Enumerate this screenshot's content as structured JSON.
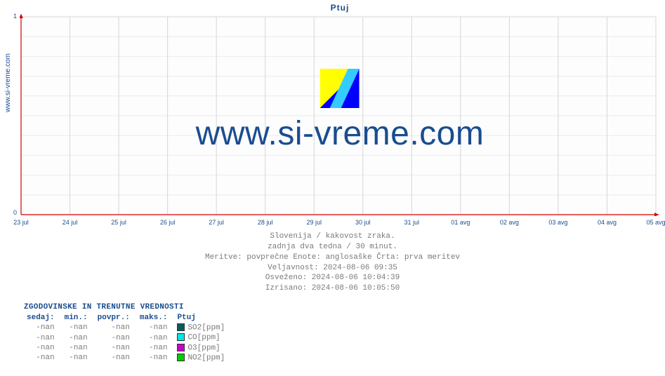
{
  "site_label": "www.si-vreme.com",
  "chart": {
    "title": "Ptuj",
    "type": "line",
    "background_color": "#fdfdfe",
    "grid_color_major": "#d6d6d6",
    "grid_color_minor": "#ececec",
    "axis_color": "#d90000",
    "tick_label_color": "#1a4d8f",
    "tick_font_size": 9,
    "title_color": "#1a4d8f",
    "title_font_size": 12,
    "xlim": [
      0,
      13
    ],
    "ylim": [
      0,
      1
    ],
    "yticks": [
      0,
      1
    ],
    "y_minor_step": 0.1,
    "xticks": [
      "23 jul",
      "24 jul",
      "25 jul",
      "26 jul",
      "27 jul",
      "28 jul",
      "29 jul",
      "30 jul",
      "31 jul",
      "01 avg",
      "02 avg",
      "03 avg",
      "04 avg",
      "05 avg"
    ],
    "series": []
  },
  "watermark": {
    "text": "www.si-vreme.com",
    "logo_colors": {
      "yellow": "#ffff00",
      "cyan": "#33ccff",
      "blue": "#0000ff"
    }
  },
  "meta": {
    "line1": "Slovenija / kakovost zraka.",
    "line2": "zadnja dva tedna / 30 minut.",
    "line3": "Meritve: povprečne  Enote: anglosaške  Črta: prva meritev",
    "line4": "Veljavnost: 2024-08-06 09:35",
    "line5": "Osveženo: 2024-08-06 10:04:39",
    "line6": "Izrisano: 2024-08-06 10:05:50"
  },
  "table": {
    "title": "ZGODOVINSKE IN TRENUTNE VREDNOSTI",
    "headers": {
      "now": "sedaj:",
      "min": "min.:",
      "avg": "povpr.:",
      "max": "maks.:",
      "station": "Ptuj"
    },
    "rows": [
      {
        "now": "-nan",
        "min": "-nan",
        "avg": "-nan",
        "max": "-nan",
        "color": "#0b5a5a",
        "label": "SO2[ppm]"
      },
      {
        "now": "-nan",
        "min": "-nan",
        "avg": "-nan",
        "max": "-nan",
        "color": "#00e5e5",
        "label": "CO[ppm]"
      },
      {
        "now": "-nan",
        "min": "-nan",
        "avg": "-nan",
        "max": "-nan",
        "color": "#cc00cc",
        "label": "O3[ppm]"
      },
      {
        "now": "-nan",
        "min": "-nan",
        "avg": "-nan",
        "max": "-nan",
        "color": "#00cc00",
        "label": "NO2[ppm]"
      }
    ]
  }
}
